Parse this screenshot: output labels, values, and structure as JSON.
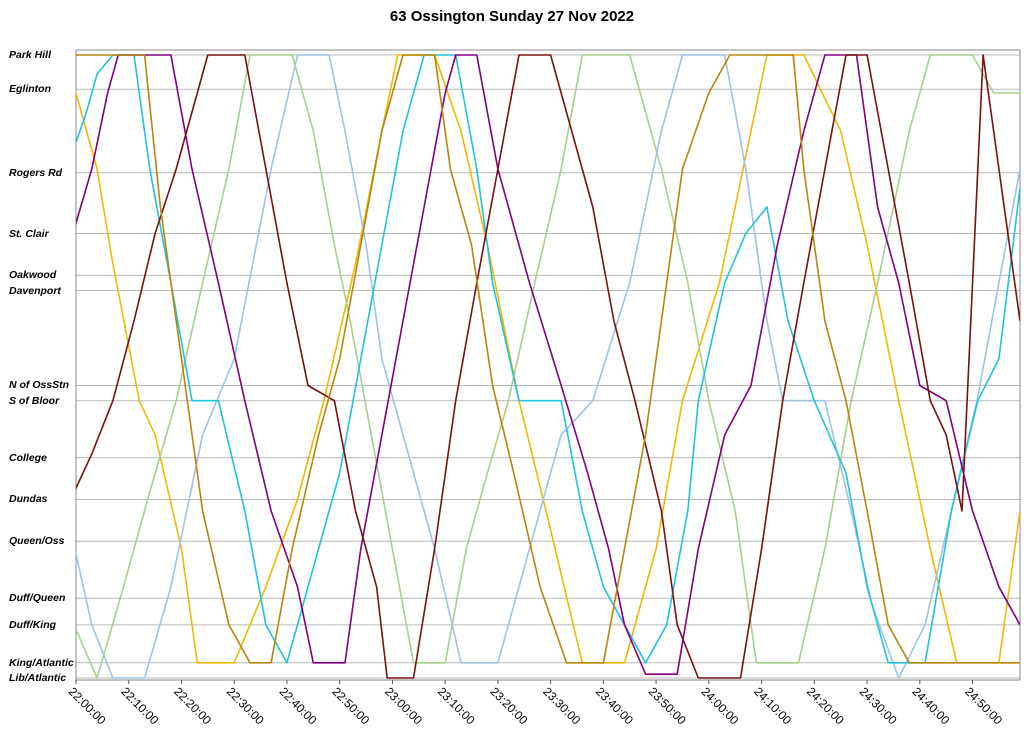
{
  "chart_data": {
    "type": "line",
    "title": "63 Ossington Sunday 27 Nov 2022",
    "xlabel": "",
    "ylabel": "",
    "grid": "horizontal lines at each stop",
    "legend": "none",
    "x_ticks": [
      "22:00:00",
      "22:10:00",
      "22:20:00",
      "22:30:00",
      "22:40:00",
      "22:50:00",
      "23:00:00",
      "23:10:00",
      "23:20:00",
      "23:30:00",
      "23:40:00",
      "23:50:00",
      "24:00:00",
      "24:10:00",
      "24:20:00",
      "24:30:00",
      "24:40:00",
      "24:50:00"
    ],
    "xlim_minutes": [
      0,
      179
    ],
    "stops": [
      "Park Hill",
      "Eglinton",
      "Rogers Rd",
      "St. Clair",
      "Oakwood",
      "Davenport",
      "N of OssStn",
      "S of Bloor",
      "College",
      "Dundas",
      "Queen/Oss",
      "Duff/Queen",
      "Duff/King",
      "King/Atlantic",
      "Lib/Atlantic"
    ],
    "stop_positions": [
      0,
      0.9,
      3.1,
      4.7,
      5.8,
      6.2,
      8.7,
      9.1,
      10.6,
      11.7,
      12.8,
      14.3,
      15.0,
      16.0,
      16.4
    ],
    "series": [
      {
        "color": "#f2b705",
        "points": [
          [
            -1,
            0.5
          ],
          [
            4,
            3
          ],
          [
            7,
            5.5
          ],
          [
            12,
            9.1
          ],
          [
            15,
            10
          ],
          [
            20,
            13
          ],
          [
            23,
            16
          ],
          [
            30,
            16
          ],
          [
            36,
            14
          ],
          [
            42,
            11.7
          ],
          [
            47,
            9.1
          ],
          [
            53,
            5.5
          ],
          [
            58,
            2
          ],
          [
            61,
            0
          ],
          [
            68,
            0
          ],
          [
            73,
            2
          ],
          [
            78,
            5
          ],
          [
            84,
            9.1
          ],
          [
            90,
            12.5
          ],
          [
            96,
            16
          ],
          [
            104,
            16
          ],
          [
            110,
            13
          ],
          [
            115,
            9.1
          ],
          [
            122,
            6
          ],
          [
            128,
            2
          ],
          [
            131,
            0
          ],
          [
            138,
            0
          ],
          [
            145,
            2
          ],
          [
            150,
            5
          ],
          [
            156,
            9.1
          ],
          [
            162,
            13
          ],
          [
            167,
            16
          ],
          [
            175,
            16
          ],
          [
            179,
            12
          ]
        ]
      },
      {
        "color": "#a8d08d",
        "points": [
          [
            -1,
            14.8
          ],
          [
            4,
            16.4
          ],
          [
            9,
            14
          ],
          [
            14,
            11.5
          ],
          [
            19,
            9.1
          ],
          [
            24,
            6
          ],
          [
            29,
            3
          ],
          [
            33,
            0
          ],
          [
            41,
            0
          ],
          [
            45,
            2
          ],
          [
            49,
            5
          ],
          [
            52,
            7
          ],
          [
            56,
            10
          ],
          [
            60,
            13
          ],
          [
            64,
            16
          ],
          [
            70,
            16
          ],
          [
            74,
            13
          ],
          [
            78,
            11
          ],
          [
            82,
            9.1
          ],
          [
            87,
            6
          ],
          [
            92,
            3
          ],
          [
            96,
            0
          ],
          [
            105,
            0
          ],
          [
            111,
            3
          ],
          [
            116,
            6
          ],
          [
            120,
            9.1
          ],
          [
            125,
            12
          ],
          [
            129,
            16
          ],
          [
            137,
            16
          ],
          [
            142,
            13
          ],
          [
            147,
            9.1
          ],
          [
            152,
            6
          ],
          [
            158,
            2
          ],
          [
            162,
            0
          ],
          [
            170,
            0
          ],
          [
            174,
            1
          ],
          [
            179,
            1
          ]
        ]
      },
      {
        "color": "#9dc3e6",
        "points": [
          [
            -1,
            12.5
          ],
          [
            3,
            15
          ],
          [
            7,
            16.4
          ],
          [
            13,
            16.4
          ],
          [
            18,
            14
          ],
          [
            24,
            10
          ],
          [
            30,
            8
          ],
          [
            37,
            3
          ],
          [
            42,
            0
          ],
          [
            48,
            0
          ],
          [
            51,
            2
          ],
          [
            55,
            5
          ],
          [
            58,
            8
          ],
          [
            62,
            10
          ],
          [
            68,
            13
          ],
          [
            73,
            16
          ],
          [
            80,
            16
          ],
          [
            86,
            13
          ],
          [
            92,
            10
          ],
          [
            98,
            9.1
          ],
          [
            105,
            6
          ],
          [
            111,
            2
          ],
          [
            115,
            0
          ],
          [
            123,
            0
          ],
          [
            127,
            3
          ],
          [
            131,
            7
          ],
          [
            134,
            9.1
          ],
          [
            142,
            9.1
          ],
          [
            147,
            12
          ],
          [
            151,
            14.5
          ],
          [
            156,
            16.4
          ],
          [
            161,
            15
          ],
          [
            166,
            12
          ],
          [
            171,
            9
          ],
          [
            175,
            6
          ],
          [
            179,
            3
          ]
        ]
      },
      {
        "color": "#22c1dc",
        "points": [
          [
            -1,
            2.7
          ],
          [
            2,
            1.5
          ],
          [
            4,
            0.5
          ],
          [
            7,
            0
          ],
          [
            11,
            0
          ],
          [
            14,
            3
          ],
          [
            18,
            6
          ],
          [
            22,
            9.1
          ],
          [
            27,
            9.1
          ],
          [
            32,
            12
          ],
          [
            36,
            15
          ],
          [
            40,
            16
          ],
          [
            44,
            14
          ],
          [
            50,
            11
          ],
          [
            54,
            8
          ],
          [
            58,
            5
          ],
          [
            62,
            2
          ],
          [
            66,
            0
          ],
          [
            72,
            0
          ],
          [
            76,
            3
          ],
          [
            79,
            6
          ],
          [
            84,
            9.1
          ],
          [
            92,
            9.1
          ],
          [
            96,
            12
          ],
          [
            100,
            14
          ],
          [
            104,
            15
          ],
          [
            108,
            16
          ],
          [
            112,
            15
          ],
          [
            116,
            12
          ],
          [
            118,
            9.1
          ],
          [
            123,
            6
          ],
          [
            127,
            4.7
          ],
          [
            131,
            4
          ],
          [
            135,
            7
          ],
          [
            140,
            9.1
          ],
          [
            146,
            11
          ],
          [
            150,
            14
          ],
          [
            154,
            16
          ],
          [
            161,
            16
          ],
          [
            166,
            12
          ],
          [
            171,
            9.1
          ],
          [
            175,
            8
          ],
          [
            179,
            3.5
          ]
        ]
      },
      {
        "color": "#800080",
        "points": [
          [
            -1,
            4.9
          ],
          [
            3,
            3
          ],
          [
            6,
            1
          ],
          [
            8,
            0
          ],
          [
            18,
            0
          ],
          [
            22,
            3
          ],
          [
            27,
            6
          ],
          [
            32,
            9.1
          ],
          [
            37,
            12
          ],
          [
            42,
            14
          ],
          [
            45,
            16
          ],
          [
            51,
            16
          ],
          [
            54,
            13
          ],
          [
            58,
            10
          ],
          [
            62,
            7
          ],
          [
            66,
            4
          ],
          [
            70,
            1
          ],
          [
            72,
            0
          ],
          [
            76,
            0
          ],
          [
            80,
            3
          ],
          [
            86,
            6
          ],
          [
            92,
            8.7
          ],
          [
            97,
            11
          ],
          [
            101,
            13
          ],
          [
            104,
            15
          ],
          [
            108,
            16.3
          ],
          [
            114,
            16.3
          ],
          [
            118,
            13
          ],
          [
            123,
            10
          ],
          [
            128,
            8.7
          ],
          [
            133,
            5
          ],
          [
            138,
            2
          ],
          [
            142,
            0
          ],
          [
            148,
            0
          ],
          [
            152,
            4
          ],
          [
            156,
            6
          ],
          [
            160,
            8.7
          ],
          [
            165,
            9.1
          ],
          [
            170,
            12
          ],
          [
            175,
            14
          ],
          [
            179,
            15
          ]
        ]
      },
      {
        "color": "#7a1010",
        "points": [
          [
            -1,
            11.7
          ],
          [
            3,
            10.5
          ],
          [
            7,
            9.1
          ],
          [
            11,
            7
          ],
          [
            15,
            4.7
          ],
          [
            19,
            3
          ],
          [
            23,
            1
          ],
          [
            25,
            0
          ],
          [
            32,
            0
          ],
          [
            36,
            3
          ],
          [
            40,
            6
          ],
          [
            44,
            8.7
          ],
          [
            49,
            9.1
          ],
          [
            53,
            12
          ],
          [
            57,
            14
          ],
          [
            59,
            16.4
          ],
          [
            64,
            16.4
          ],
          [
            68,
            13
          ],
          [
            72,
            9.1
          ],
          [
            76,
            6
          ],
          [
            80,
            3
          ],
          [
            84,
            0
          ],
          [
            90,
            0
          ],
          [
            94,
            2
          ],
          [
            98,
            4
          ],
          [
            102,
            7
          ],
          [
            106,
            9.1
          ],
          [
            111,
            12
          ],
          [
            114,
            15
          ],
          [
            118,
            16.4
          ],
          [
            126,
            16.4
          ],
          [
            130,
            13
          ],
          [
            134,
            9.1
          ],
          [
            138,
            6
          ],
          [
            142,
            3
          ],
          [
            146,
            0
          ],
          [
            150,
            0
          ],
          [
            154,
            3
          ],
          [
            158,
            6
          ],
          [
            162,
            9.1
          ],
          [
            165,
            10
          ],
          [
            168,
            12
          ],
          [
            172,
            0
          ],
          [
            176,
            4
          ],
          [
            179,
            7
          ]
        ]
      },
      {
        "color": "#b8860b",
        "points": [
          [
            -1,
            0
          ],
          [
            13,
            0
          ],
          [
            16,
            4
          ],
          [
            20,
            8
          ],
          [
            24,
            12
          ],
          [
            29,
            15
          ],
          [
            33,
            16
          ],
          [
            37,
            16
          ],
          [
            41,
            13
          ],
          [
            46,
            10
          ],
          [
            50,
            8
          ],
          [
            54,
            5
          ],
          [
            58,
            2
          ],
          [
            62,
            0
          ],
          [
            68,
            0
          ],
          [
            71,
            3
          ],
          [
            75,
            5
          ],
          [
            79,
            8.7
          ],
          [
            83,
            11
          ],
          [
            88,
            14
          ],
          [
            93,
            16
          ],
          [
            100,
            16
          ],
          [
            104,
            13
          ],
          [
            108,
            10
          ],
          [
            111,
            7
          ],
          [
            115,
            3
          ],
          [
            120,
            1
          ],
          [
            124,
            0
          ],
          [
            136,
            0
          ],
          [
            138,
            3
          ],
          [
            142,
            7
          ],
          [
            146,
            9.1
          ],
          [
            150,
            12
          ],
          [
            154,
            15
          ],
          [
            158,
            16
          ],
          [
            166,
            16
          ],
          [
            179,
            16
          ]
        ]
      }
    ]
  }
}
